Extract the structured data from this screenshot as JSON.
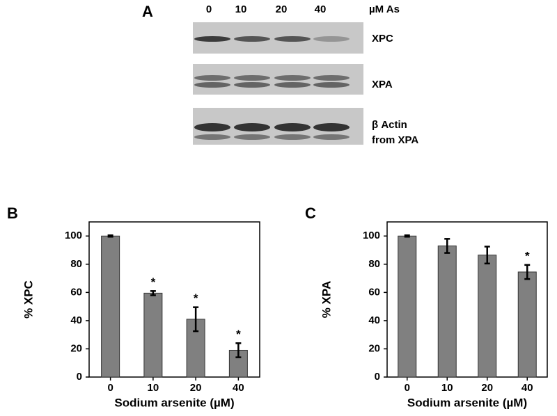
{
  "panel_a": {
    "label": "A",
    "lanes": [
      "0",
      "10",
      "20",
      "40"
    ],
    "unit": "µM As",
    "blots": [
      [
        "XPC"
      ],
      [
        "XPA"
      ],
      [
        "β Actin",
        "from XPA"
      ]
    ]
  },
  "chart_data": [
    {
      "type": "bar",
      "panel_label": "B",
      "y_label": "% XPC",
      "x_label": "Sodium arsenite (µM)",
      "categories": [
        "0",
        "10",
        "20",
        "40"
      ],
      "values": [
        100,
        59.5,
        41,
        19
      ],
      "errors": [
        0.5,
        1.5,
        8.5,
        5
      ],
      "annotations": [
        null,
        "*",
        "*",
        "*"
      ],
      "color": "#808080",
      "ylim": [
        0,
        110
      ],
      "yticks": [
        0,
        20,
        40,
        60,
        80,
        100
      ]
    },
    {
      "type": "bar",
      "panel_label": "C",
      "y_label": "% XPA",
      "x_label": "Sodium arsenite (µM)",
      "categories": [
        "0",
        "10",
        "20",
        "40"
      ],
      "values": [
        100,
        93,
        86.5,
        74.5
      ],
      "errors": [
        0.5,
        5,
        6,
        5
      ],
      "annotations": [
        null,
        null,
        null,
        "*"
      ],
      "color": "#808080",
      "ylim": [
        0,
        110
      ],
      "yticks": [
        0,
        20,
        40,
        60,
        80,
        100
      ]
    }
  ]
}
